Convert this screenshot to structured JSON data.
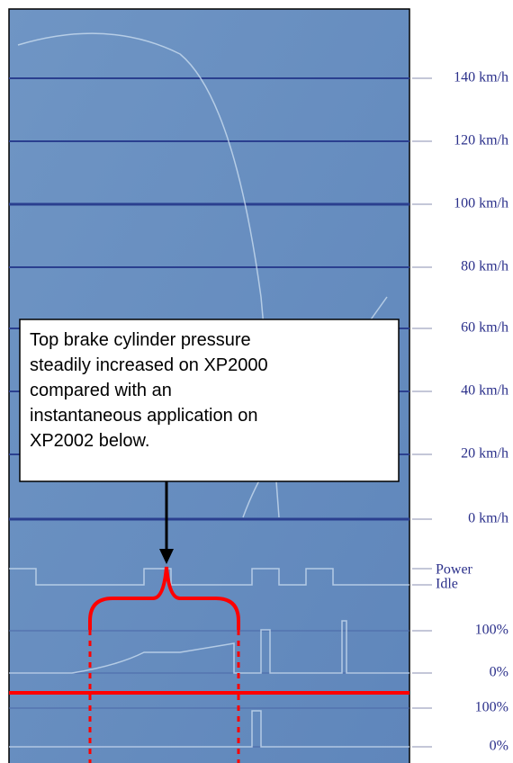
{
  "axis_labels": [
    "140 km/h",
    "120 km/h",
    "100 km/h",
    "80 km/h",
    "60 km/h",
    "40 km/h",
    "20 km/h",
    "0 km/h",
    "Power",
    "Idle",
    "100%",
    "0%",
    "100%",
    "0%"
  ],
  "annotation": {
    "lines": [
      "Top brake cylinder pressure",
      "steadily increased on XP2000",
      "compared with an",
      "instantaneous application on",
      "XP2002 below."
    ]
  }
}
